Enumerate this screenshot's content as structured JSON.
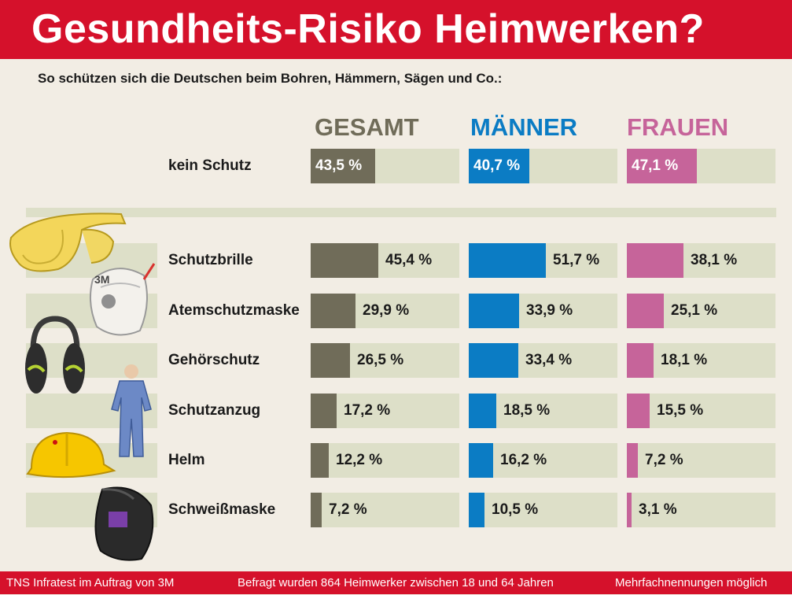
{
  "header": {
    "title": "Gesundheits-Risiko Heimwerken?"
  },
  "subtitle": "So schützen sich die Deutschen beim Bohren, Hämmern, Sägen und Co.:",
  "colors": {
    "brand_red": "#d5112b",
    "gesamt": "#706c59",
    "maenner": "#0b7cc4",
    "frauen": "#c6649a",
    "bar_track": "#dddfc8"
  },
  "illustrations": [
    "safety-glasses",
    "respirator-mask",
    "earmuffs",
    "protective-suit",
    "hard-hat",
    "welding-helmet"
  ],
  "chart_data": {
    "type": "bar",
    "series": [
      {
        "name": "GESAMT",
        "values": [
          43.5,
          45.4,
          29.9,
          26.5,
          17.2,
          12.2,
          7.2
        ],
        "labels": [
          "43,5 %",
          "45,4 %",
          "29,9 %",
          "26,5 %",
          "17,2 %",
          "12,2 %",
          "7,2 %"
        ]
      },
      {
        "name": "MÄNNER",
        "values": [
          40.7,
          51.7,
          33.9,
          33.4,
          18.5,
          16.2,
          10.5
        ],
        "labels": [
          "40,7 %",
          "51,7 %",
          "33,9 %",
          "33,4 %",
          "18,5 %",
          "16,2 %",
          "10,5 %"
        ]
      },
      {
        "name": "FRAUEN",
        "values": [
          47.1,
          38.1,
          25.1,
          18.1,
          15.5,
          7.2,
          3.1
        ],
        "labels": [
          "47,1 %",
          "38,1 %",
          "25,1 %",
          "18,1 %",
          "15,5 %",
          "7,2 %",
          "3,1 %"
        ]
      }
    ],
    "categories": [
      "kein Schutz",
      "Schutzbrille",
      "Atemschutzmaske",
      "Gehörschutz",
      "Schutzanzug",
      "Helm",
      "Schweißmaske"
    ],
    "unit": "%",
    "xlim": [
      0,
      100
    ]
  },
  "footer": {
    "source": "TNS Infratest im Auftrag von 3M",
    "sample": "Befragt wurden 864 Heimwerker zwischen 18 und 64 Jahren",
    "note": "Mehrfachnennungen möglich"
  }
}
